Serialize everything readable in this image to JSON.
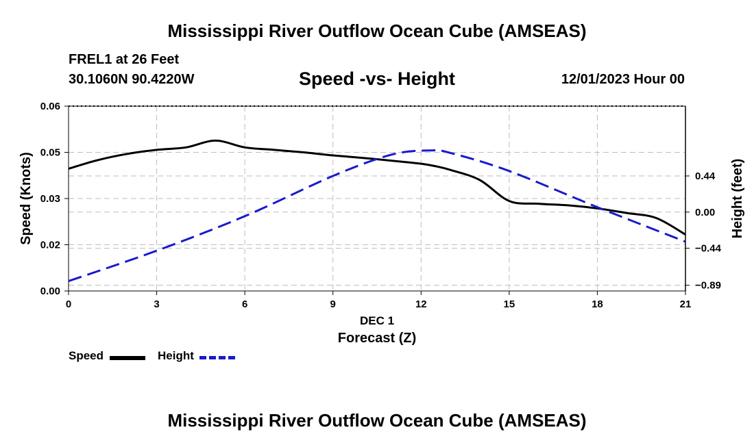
{
  "header": {
    "title": "Mississippi River Outflow Ocean Cube (AMSEAS)",
    "station": "FREL1 at 26 Feet",
    "coords": "30.1060N  90.4220W",
    "subtitle": "Speed -vs- Height",
    "datetime": "12/01/2023 Hour 00"
  },
  "footer": {
    "title": "Mississippi River Outflow Ocean Cube (AMSEAS)"
  },
  "chart_data": {
    "type": "line",
    "title": "Speed -vs- Height",
    "xlabel": "Forecast (Z)",
    "xsublabel": "DEC 1",
    "ylabel": "Speed (Knots)",
    "y2label": "Height (feet)",
    "xlim": [
      0,
      21
    ],
    "ylim": [
      0,
      0.06
    ],
    "y2lim": [
      -0.96,
      1.29
    ],
    "xticks": [
      "0",
      "3",
      "6",
      "9",
      "12",
      "15",
      "18",
      "21"
    ],
    "yticks": [
      "0.00",
      "0.02",
      "0.03",
      "0.05",
      "0.06"
    ],
    "ytick_values": [
      0,
      0.015,
      0.03,
      0.045,
      0.06
    ],
    "y2ticks": [
      "−0.89",
      "−0.44",
      "0.00",
      "0.44"
    ],
    "y2tick_values": [
      -0.89,
      -0.44,
      0.0,
      0.44
    ],
    "grid": true,
    "legend_position": "bottom-left",
    "series": [
      {
        "name": "Speed",
        "axis": "left",
        "color": "#000000",
        "dash": "solid",
        "x": [
          0,
          1,
          2,
          3,
          4,
          5,
          6,
          7,
          8,
          9,
          10,
          11,
          12,
          12.5,
          13,
          14,
          15,
          16,
          17,
          18,
          19,
          20,
          21
        ],
        "values": [
          0.0397,
          0.0425,
          0.0445,
          0.0458,
          0.0466,
          0.0488,
          0.0466,
          0.0458,
          0.045,
          0.044,
          0.0432,
          0.0423,
          0.0413,
          0.0405,
          0.0393,
          0.036,
          0.0292,
          0.0283,
          0.0278,
          0.0268,
          0.0253,
          0.0237,
          0.0183
        ]
      },
      {
        "name": "Height",
        "axis": "right",
        "color": "#1a1acc",
        "dash": "dashed",
        "x": [
          0,
          3,
          6,
          9,
          11,
          12.3,
          13,
          15,
          18,
          21
        ],
        "values": [
          -0.84,
          -0.47,
          -0.05,
          0.44,
          0.7,
          0.75,
          0.72,
          0.5,
          0.06,
          -0.36
        ]
      }
    ]
  },
  "legend": {
    "speed_label": "Speed",
    "height_label": "Height"
  }
}
